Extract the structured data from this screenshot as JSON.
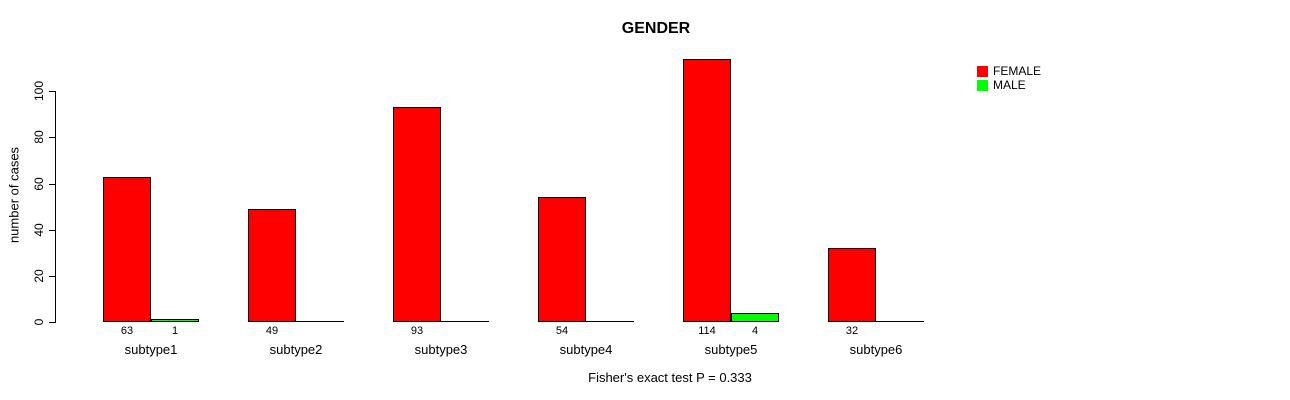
{
  "chart_data": {
    "type": "bar",
    "title": "GENDER",
    "xlabel": "",
    "ylabel": "number of cases",
    "categories": [
      "subtype1",
      "subtype2",
      "subtype3",
      "subtype4",
      "subtype5",
      "subtype6"
    ],
    "series": [
      {
        "name": "FEMALE",
        "color": "#ff0000",
        "values": [
          63,
          49,
          93,
          54,
          114,
          32
        ]
      },
      {
        "name": "MALE",
        "color": "#00ff00",
        "values": [
          1,
          0,
          0,
          0,
          4,
          0
        ]
      }
    ],
    "bar_value_labels": [
      [
        "63",
        "1"
      ],
      [
        "49",
        ""
      ],
      [
        "93",
        ""
      ],
      [
        "54",
        ""
      ],
      [
        "114",
        "4"
      ],
      [
        "32",
        ""
      ]
    ],
    "yticks": [
      0,
      20,
      40,
      60,
      80,
      100
    ],
    "ylim": [
      0,
      100
    ],
    "grid": false,
    "legend_position": "top-right",
    "annotation": "Fisher's exact test P = 0.333"
  }
}
